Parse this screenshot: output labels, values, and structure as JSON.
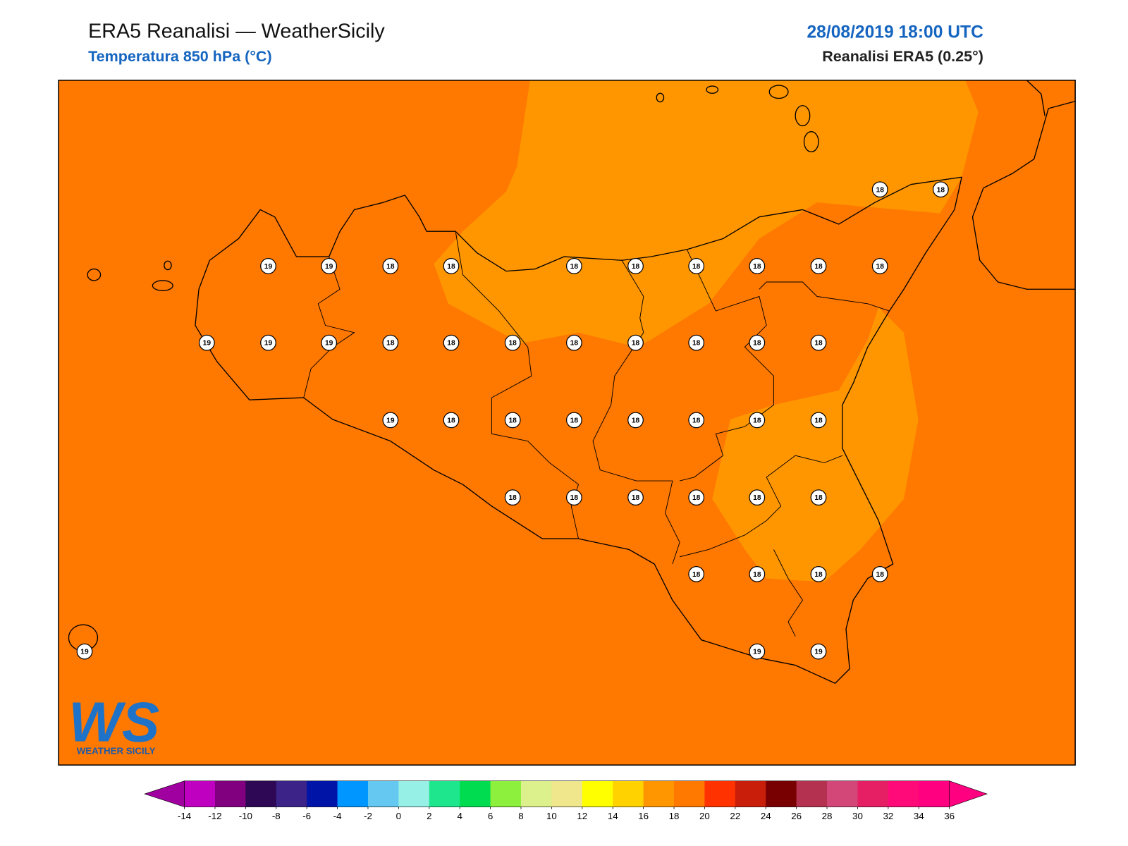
{
  "header": {
    "title": "ERA5 Reanalisi — WeatherSicily",
    "subtitle": "Temperatura 850 hPa (°C)",
    "datetime": "28/08/2019 18:00 UTC",
    "model": "Reanalisi ERA5 (0.25°)"
  },
  "stations": [
    18,
    18,
    19,
    19,
    18,
    18,
    18,
    18,
    18,
    18,
    18,
    18,
    19,
    19,
    19,
    18,
    18,
    18,
    18,
    18,
    18,
    18,
    18,
    19,
    18,
    18,
    18,
    18,
    18,
    18,
    18,
    18,
    18,
    18,
    18,
    18,
    18,
    18,
    18,
    18,
    18,
    19,
    19,
    19
  ],
  "colorbar": {
    "ticks": [
      -14,
      -12,
      -10,
      -8,
      -6,
      -4,
      -2,
      0,
      2,
      4,
      6,
      8,
      10,
      12,
      14,
      16,
      18,
      20,
      22,
      24,
      26,
      28,
      30,
      32,
      34,
      36
    ],
    "colors": [
      "#c000c0",
      "#800080",
      "#2e0854",
      "#3b2388",
      "#0014a8",
      "#0096ff",
      "#64c8f0",
      "#96f0e6",
      "#1ee68c",
      "#00dc50",
      "#8cf03c",
      "#dcf08c",
      "#f0e68c",
      "#ffff00",
      "#ffd200",
      "#ff9600",
      "#ff7800",
      "#ff3200",
      "#c81e0a",
      "#780000",
      "#b43250",
      "#d24678",
      "#e61e64",
      "#ff0a78",
      "#ff0080"
    ],
    "under": "#a000a0",
    "over": "#ff0080"
  },
  "logo": {
    "mark": "WS",
    "text": "WEATHER SICILY"
  }
}
